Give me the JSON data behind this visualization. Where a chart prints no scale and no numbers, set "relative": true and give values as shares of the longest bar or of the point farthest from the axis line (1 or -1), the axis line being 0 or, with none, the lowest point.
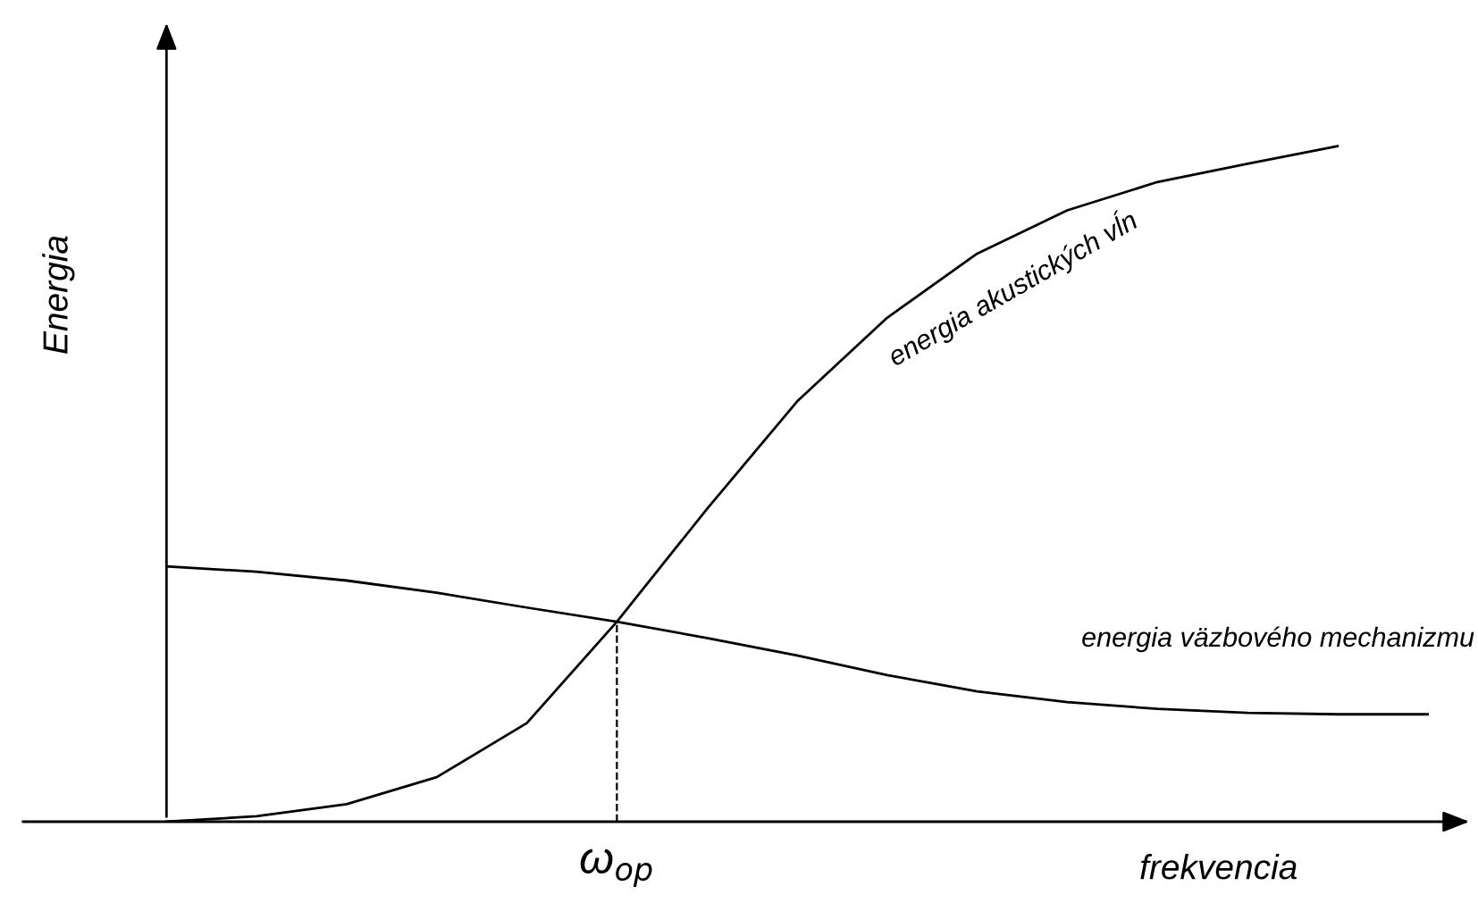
{
  "chart_data": {
    "type": "line",
    "relative": true,
    "xlabel": "frekvencia",
    "ylabel": "Energia",
    "categories": [
      null,
      null,
      null,
      null,
      null,
      null,
      null,
      null,
      null,
      null,
      null,
      null,
      null,
      null,
      null
    ],
    "series": [
      {
        "color": "#000000",
        "values": [
          0,
          0.008,
          0.026,
          0.066,
          0.146,
          0.296,
          0.463,
          0.622,
          0.746,
          0.841,
          0.905,
          0.947,
          0.974,
          1.0,
          null
        ]
      },
      {
        "color": "#000000",
        "values": [
          0.378,
          0.37,
          0.357,
          0.339,
          0.317,
          0.296,
          0.272,
          0.246,
          0.217,
          0.193,
          0.177,
          0.167,
          0.161,
          0.159,
          0.159
        ]
      }
    ],
    "annotations": [
      "energia akustických vĺn",
      "energia väzbového mechanizmu",
      "ω$_{op}$"
    ],
    "legend": false,
    "marker": "none",
    "line_style": "solid"
  }
}
